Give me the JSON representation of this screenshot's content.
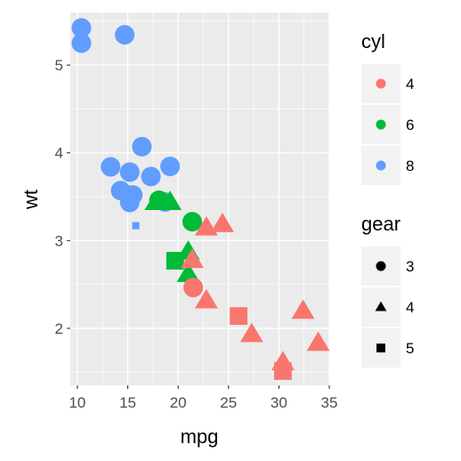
{
  "chart_data": {
    "type": "scatter",
    "xlabel": "mpg",
    "ylabel": "wt",
    "xlim": [
      9.3,
      35.0
    ],
    "ylim": [
      1.35,
      5.6
    ],
    "x_ticks": [
      10,
      15,
      20,
      25,
      30,
      35
    ],
    "y_ticks": [
      2,
      3,
      4,
      5
    ],
    "grid": true,
    "legend_position": "right",
    "colors": {
      "4": "#F8766D",
      "6": "#00BA38",
      "8": "#619CFF"
    },
    "shapes": {
      "3": "circle",
      "4": "triangle",
      "5": "square"
    },
    "points": [
      {
        "x": 21.0,
        "y": 2.62,
        "cyl": "6",
        "gear": "4"
      },
      {
        "x": 21.0,
        "y": 2.875,
        "cyl": "6",
        "gear": "4"
      },
      {
        "x": 22.8,
        "y": 2.32,
        "cyl": "4",
        "gear": "4"
      },
      {
        "x": 21.4,
        "y": 3.215,
        "cyl": "6",
        "gear": "3"
      },
      {
        "x": 18.7,
        "y": 3.44,
        "cyl": "8",
        "gear": "3"
      },
      {
        "x": 18.1,
        "y": 3.46,
        "cyl": "6",
        "gear": "3"
      },
      {
        "x": 14.3,
        "y": 3.57,
        "cyl": "8",
        "gear": "3"
      },
      {
        "x": 24.4,
        "y": 3.19,
        "cyl": "4",
        "gear": "4"
      },
      {
        "x": 22.8,
        "y": 3.15,
        "cyl": "4",
        "gear": "4"
      },
      {
        "x": 19.2,
        "y": 3.44,
        "cyl": "6",
        "gear": "4"
      },
      {
        "x": 17.8,
        "y": 3.44,
        "cyl": "6",
        "gear": "4"
      },
      {
        "x": 16.4,
        "y": 4.07,
        "cyl": "8",
        "gear": "3"
      },
      {
        "x": 17.3,
        "y": 3.73,
        "cyl": "8",
        "gear": "3"
      },
      {
        "x": 15.2,
        "y": 3.78,
        "cyl": "8",
        "gear": "3"
      },
      {
        "x": 10.4,
        "y": 5.25,
        "cyl": "8",
        "gear": "3"
      },
      {
        "x": 10.4,
        "y": 5.424,
        "cyl": "8",
        "gear": "3"
      },
      {
        "x": 14.7,
        "y": 5.345,
        "cyl": "8",
        "gear": "3"
      },
      {
        "x": 32.4,
        "y": 2.2,
        "cyl": "4",
        "gear": "4"
      },
      {
        "x": 30.4,
        "y": 1.615,
        "cyl": "4",
        "gear": "4"
      },
      {
        "x": 33.9,
        "y": 1.835,
        "cyl": "4",
        "gear": "4"
      },
      {
        "x": 21.5,
        "y": 2.465,
        "cyl": "4",
        "gear": "3"
      },
      {
        "x": 15.5,
        "y": 3.52,
        "cyl": "8",
        "gear": "3"
      },
      {
        "x": 15.2,
        "y": 3.435,
        "cyl": "8",
        "gear": "3"
      },
      {
        "x": 13.3,
        "y": 3.84,
        "cyl": "8",
        "gear": "3"
      },
      {
        "x": 19.2,
        "y": 3.845,
        "cyl": "8",
        "gear": "3"
      },
      {
        "x": 27.3,
        "y": 1.935,
        "cyl": "4",
        "gear": "4"
      },
      {
        "x": 26.0,
        "y": 2.14,
        "cyl": "4",
        "gear": "5"
      },
      {
        "x": 30.4,
        "y": 1.513,
        "cyl": "4",
        "gear": "5"
      },
      {
        "x": 15.8,
        "y": 3.17,
        "cyl": "8",
        "gear": "5"
      },
      {
        "x": 19.7,
        "y": 2.77,
        "cyl": "6",
        "gear": "5"
      },
      {
        "x": 15.0,
        "y": 3.57,
        "cyl": "8",
        "gear": "5"
      },
      {
        "x": 21.4,
        "y": 2.78,
        "cyl": "4",
        "gear": "4"
      }
    ],
    "legends": [
      {
        "title": "cyl",
        "items": [
          {
            "label": "4",
            "color": "#F8766D",
            "shape": "circle"
          },
          {
            "label": "6",
            "color": "#00BA38",
            "shape": "circle"
          },
          {
            "label": "8",
            "color": "#619CFF",
            "shape": "circle"
          }
        ]
      },
      {
        "title": "gear",
        "items": [
          {
            "label": "3",
            "color": "#000000",
            "shape": "circle"
          },
          {
            "label": "4",
            "color": "#000000",
            "shape": "triangle"
          },
          {
            "label": "5",
            "color": "#000000",
            "shape": "square"
          }
        ]
      }
    ]
  }
}
